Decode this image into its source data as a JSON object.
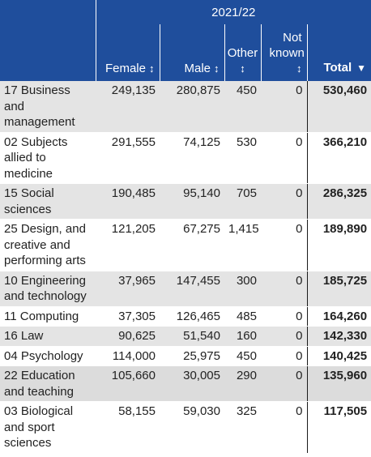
{
  "header": {
    "year": "2021/22",
    "columns": [
      {
        "label": "Female",
        "sort": "↕"
      },
      {
        "label": "Male",
        "sort": "↕"
      },
      {
        "label": "Other",
        "sort": "↕"
      },
      {
        "label": "Not known",
        "sort": "↕"
      },
      {
        "label": "Total",
        "sort": "▼"
      }
    ]
  },
  "rows": [
    {
      "subject": "17 Business and management",
      "female": "249,135",
      "male": "280,875",
      "other": "450",
      "not_known": "0",
      "total": "530,460"
    },
    {
      "subject": "02 Subjects allied to medicine",
      "female": "291,555",
      "male": "74,125",
      "other": "530",
      "not_known": "0",
      "total": "366,210"
    },
    {
      "subject": "15 Social sciences",
      "female": "190,485",
      "male": "95,140",
      "other": "705",
      "not_known": "0",
      "total": "286,325"
    },
    {
      "subject": "25 Design, and creative and performing arts",
      "female": "121,205",
      "male": "67,275",
      "other": "1,415",
      "not_known": "0",
      "total": "189,890"
    },
    {
      "subject": "10 Engineering and technology",
      "female": "37,965",
      "male": "147,455",
      "other": "300",
      "not_known": "0",
      "total": "185,725"
    },
    {
      "subject": "11 Computing",
      "female": "37,305",
      "male": "126,465",
      "other": "485",
      "not_known": "0",
      "total": "164,260"
    },
    {
      "subject": "16 Law",
      "female": "90,625",
      "male": "51,540",
      "other": "160",
      "not_known": "0",
      "total": "142,330"
    },
    {
      "subject": "04 Psychology",
      "female": "114,000",
      "male": "25,975",
      "other": "450",
      "not_known": "0",
      "total": "140,425"
    },
    {
      "subject": "22 Education and teaching",
      "female": "105,660",
      "male": "30,005",
      "other": "290",
      "not_known": "0",
      "total": "135,960"
    },
    {
      "subject": "03 Biological and sport sciences",
      "female": "58,155",
      "male": "59,030",
      "other": "325",
      "not_known": "0",
      "total": "117,505"
    }
  ],
  "colors": {
    "header_bg": "#1f4e9c",
    "header_text": "#ffffff",
    "shade": "#e4e4e4"
  }
}
